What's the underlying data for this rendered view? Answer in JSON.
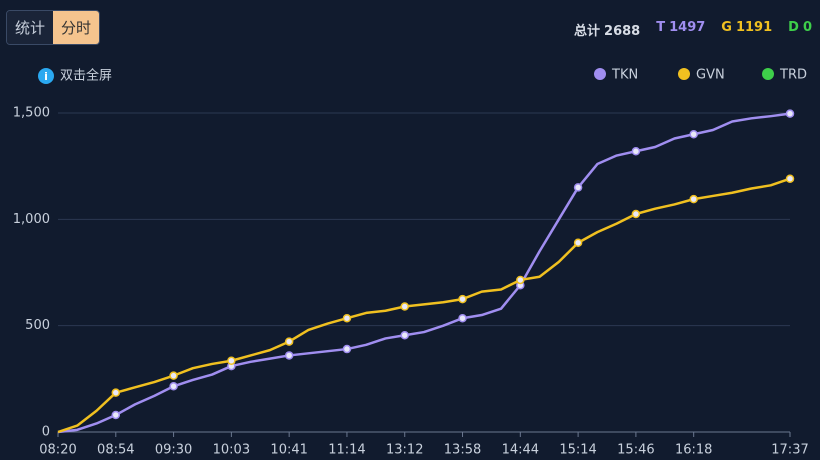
{
  "controls": {
    "buttons": [
      "统计",
      "分时"
    ],
    "active": 1,
    "hint": "双击全屏"
  },
  "summary": [
    {
      "label": "总计",
      "value": 2688,
      "color": "#d8dde6"
    },
    {
      "label": "T",
      "value": 1497,
      "color": "#a08ef0"
    },
    {
      "label": "G",
      "value": 1191,
      "color": "#f0c020"
    },
    {
      "label": "D",
      "value": 0,
      "color": "#3ecf4a"
    }
  ],
  "chart_data": {
    "type": "line",
    "categories": [
      "08:20",
      null,
      null,
      "08:54",
      null,
      null,
      "09:30",
      null,
      null,
      "10:03",
      null,
      null,
      "10:41",
      null,
      null,
      "11:14",
      null,
      null,
      "13:12",
      null,
      null,
      "13:58",
      null,
      null,
      "14:44",
      null,
      null,
      "15:14",
      null,
      null,
      "15:46",
      null,
      null,
      "16:18",
      null,
      null,
      null,
      null,
      "17:37"
    ],
    "series": [
      {
        "name": "TKN",
        "color": "#a08ef0",
        "values": [
          0,
          10,
          40,
          80,
          130,
          170,
          215,
          245,
          270,
          310,
          330,
          345,
          360,
          370,
          380,
          390,
          410,
          440,
          455,
          470,
          500,
          535,
          550,
          580,
          690,
          850,
          1000,
          1150,
          1260,
          1300,
          1320,
          1340,
          1380,
          1400,
          1420,
          1460,
          1475,
          1485,
          1497
        ]
      },
      {
        "name": "GVN",
        "color": "#f0c020",
        "values": [
          0,
          30,
          100,
          185,
          210,
          235,
          265,
          300,
          320,
          335,
          360,
          385,
          425,
          480,
          510,
          535,
          560,
          570,
          590,
          600,
          610,
          625,
          660,
          670,
          715,
          730,
          800,
          890,
          940,
          980,
          1025,
          1050,
          1070,
          1095,
          1110,
          1125,
          1145,
          1160,
          1191
        ]
      },
      {
        "name": "TRD",
        "color": "#3ecf4a"
      }
    ],
    "ylim": [
      0,
      1500
    ],
    "yticks": [
      0,
      500,
      {
        "value": 1000,
        "label": "1,000"
      },
      {
        "value": 1500,
        "label": "1,500"
      }
    ],
    "grid": true
  }
}
